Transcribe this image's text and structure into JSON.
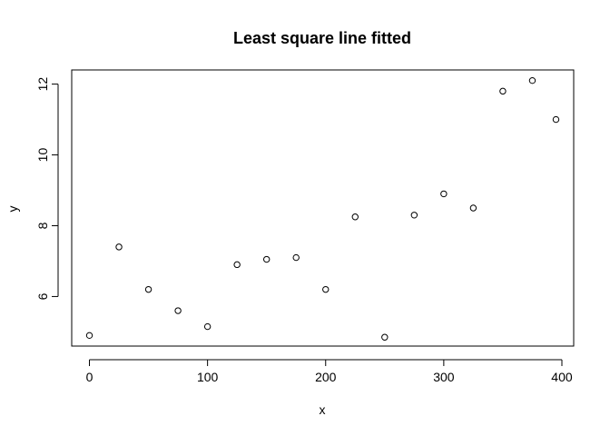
{
  "chart_data": {
    "type": "scatter",
    "title": "Least square line fitted",
    "xlabel": "x",
    "ylabel": "y",
    "xlim": [
      -15,
      410
    ],
    "ylim": [
      4.6,
      12.4
    ],
    "xticks": [
      0,
      100,
      200,
      300,
      400
    ],
    "yticks": [
      6,
      8,
      10,
      12
    ],
    "xtick_labels": [
      "0",
      "100",
      "200",
      "300",
      "400"
    ],
    "ytick_labels": [
      "6",
      "8",
      "10",
      "12"
    ],
    "grid": false,
    "legend": "none",
    "x": [
      0,
      25,
      50,
      75,
      100,
      125,
      150,
      175,
      200,
      225,
      250,
      275,
      300,
      325,
      350,
      375,
      395
    ],
    "y": [
      4.9,
      7.4,
      6.2,
      5.6,
      5.15,
      6.9,
      7.05,
      7.1,
      6.2,
      8.25,
      4.85,
      8.3,
      8.9,
      8.5,
      11.8,
      12.1,
      11.0
    ],
    "colors": {
      "points": "#000000",
      "axes": "#000000",
      "background": "#ffffff"
    }
  }
}
